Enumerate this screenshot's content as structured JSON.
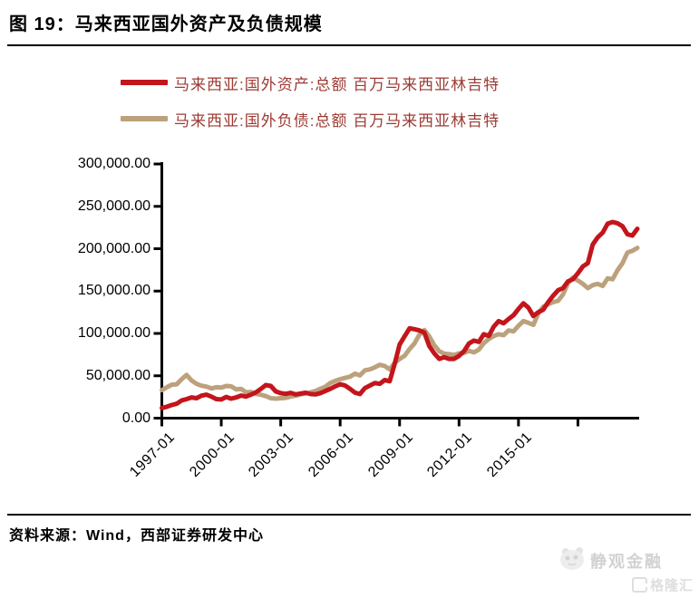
{
  "figure": {
    "title": "图 19：马来西亚国外资产及负债规模",
    "source": "资料来源：Wind，西部证券研发中心"
  },
  "watermark": {
    "brand": "静观金融",
    "logo": "格隆汇"
  },
  "chart_data": {
    "type": "line",
    "title": "马来西亚国外资产及负债规模",
    "unit": "百万马来西亚林吉特",
    "legend_position": "top",
    "grid": false,
    "x": [
      "1997-01",
      "1997-04",
      "1997-07",
      "1997-10",
      "1998-01",
      "1998-04",
      "1998-07",
      "1998-10",
      "1999-01",
      "1999-04",
      "1999-07",
      "1999-10",
      "2000-01",
      "2000-04",
      "2000-07",
      "2000-10",
      "2001-01",
      "2001-04",
      "2001-07",
      "2001-10",
      "2002-01",
      "2002-04",
      "2002-07",
      "2002-10",
      "2003-01",
      "2003-04",
      "2003-07",
      "2003-10",
      "2004-01",
      "2004-04",
      "2004-07",
      "2004-10",
      "2005-01",
      "2005-04",
      "2005-07",
      "2005-10",
      "2006-01",
      "2006-04",
      "2006-07",
      "2006-10",
      "2007-01",
      "2007-04",
      "2007-07",
      "2007-10",
      "2008-01",
      "2008-04",
      "2008-07",
      "2008-10",
      "2009-01",
      "2009-04",
      "2009-07",
      "2009-10",
      "2010-01",
      "2010-04",
      "2010-07",
      "2010-10",
      "2011-01",
      "2011-04",
      "2011-07",
      "2011-10",
      "2012-01",
      "2012-04",
      "2012-07",
      "2012-10",
      "2013-01",
      "2013-04",
      "2013-07",
      "2013-10",
      "2014-01",
      "2014-04",
      "2014-07",
      "2014-10",
      "2015-01",
      "2015-04",
      "2015-07",
      "2015-10",
      "2016-01",
      "2016-04",
      "2016-07",
      "2016-10",
      "2017-01",
      "2017-04",
      "2017-07",
      "2017-10",
      "2018-01",
      "2018-04",
      "2018-07",
      "2018-10",
      "2019-01",
      "2019-04",
      "2019-07",
      "2019-10",
      "2020-01",
      "2020-04",
      "2020-07",
      "2020-10",
      "2021-01"
    ],
    "series": [
      {
        "name": "马来西亚:国外资产:总额 百万马来西亚林吉特",
        "color": "#c3151c",
        "values": [
          12000,
          13500,
          15500,
          17000,
          21000,
          22500,
          24500,
          23500,
          26500,
          27700,
          25500,
          22500,
          22000,
          25000,
          23000,
          24500,
          26600,
          25500,
          27700,
          30500,
          34500,
          39000,
          38000,
          31500,
          29500,
          28700,
          29800,
          28000,
          29000,
          30000,
          28500,
          28000,
          29500,
          32000,
          34500,
          37500,
          40000,
          38500,
          34500,
          30000,
          28500,
          35500,
          38500,
          41500,
          40500,
          45000,
          43500,
          64000,
          87000,
          96500,
          106000,
          105000,
          103500,
          101000,
          85000,
          76500,
          70000,
          72000,
          70000,
          70000,
          73500,
          79000,
          88000,
          91500,
          90000,
          99000,
          97000,
          108000,
          114500,
          112000,
          117000,
          121500,
          129000,
          135500,
          130500,
          120500,
          125000,
          128000,
          137000,
          144500,
          151000,
          153500,
          161500,
          164000,
          171000,
          179000,
          183000,
          205000,
          213500,
          219000,
          229500,
          231500,
          230000,
          226500,
          217000,
          215500,
          223500
        ]
      },
      {
        "name": "马来西亚:国外负债:总额 百万马来西亚林吉特",
        "color": "#bca17d",
        "values": [
          33000,
          36500,
          39500,
          40000,
          46000,
          51000,
          44500,
          40500,
          38300,
          37200,
          35100,
          36500,
          36000,
          38000,
          37500,
          34000,
          34500,
          30500,
          30900,
          28700,
          27700,
          26000,
          23500,
          23000,
          23500,
          24000,
          25500,
          26500,
          28000,
          29000,
          30500,
          32000,
          34500,
          37000,
          41500,
          44000,
          46000,
          47500,
          49000,
          52500,
          50500,
          56500,
          57500,
          60000,
          63000,
          61500,
          57500,
          65000,
          70000,
          73500,
          81500,
          88000,
          98500,
          104000,
          96500,
          86000,
          79000,
          76000,
          75500,
          74500,
          76500,
          77000,
          79500,
          77700,
          81000,
          88500,
          93500,
          97000,
          99000,
          98000,
          103500,
          102500,
          109000,
          114500,
          112500,
          110000,
          123500,
          131500,
          134500,
          137000,
          138500,
          146000,
          159500,
          166000,
          162500,
          158500,
          153500,
          157000,
          158500,
          156000,
          165000,
          164000,
          174500,
          183000,
          195500,
          197500,
          201000
        ]
      }
    ],
    "y_axis": {
      "min": 0,
      "max": 300000,
      "step": 50000,
      "tick_labels": [
        "0.00",
        "50,000.00",
        "100,000.00",
        "150,000.00",
        "200,000.00",
        "250,000.00",
        "300,000.00"
      ]
    },
    "x_axis": {
      "tick_every_months": 36,
      "tick_labels": [
        "1997-01",
        "2000-01",
        "2003-01",
        "2006-01",
        "2009-01",
        "2012-01",
        "2015-01"
      ],
      "extra_unlabeled_ticks": 1
    }
  }
}
